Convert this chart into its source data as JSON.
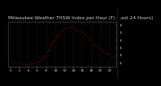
{
  "title": "Milwaukee Weather THSW Index per Hour (F) (Last 24 Hours)",
  "hours": [
    0,
    1,
    2,
    3,
    4,
    5,
    6,
    7,
    8,
    9,
    10,
    11,
    12,
    13,
    14,
    15,
    16,
    17,
    18,
    19,
    20,
    21,
    22,
    23
  ],
  "values": [
    12,
    10,
    9,
    8,
    8,
    9,
    10,
    14,
    22,
    32,
    42,
    50,
    54,
    58,
    56,
    53,
    50,
    44,
    38,
    32,
    28,
    24,
    20,
    18
  ],
  "line_color": "#ff0000",
  "marker_color": "#000000",
  "bg_color": "#000000",
  "plot_bg": "#000000",
  "grid_color": "#555555",
  "text_color": "#cccccc",
  "ylim": [
    5,
    65
  ],
  "yticks": [
    10,
    20,
    30,
    40,
    50,
    60
  ],
  "title_fontsize": 4.2,
  "tick_fontsize": 3.2,
  "right_bar_color": "#222222"
}
